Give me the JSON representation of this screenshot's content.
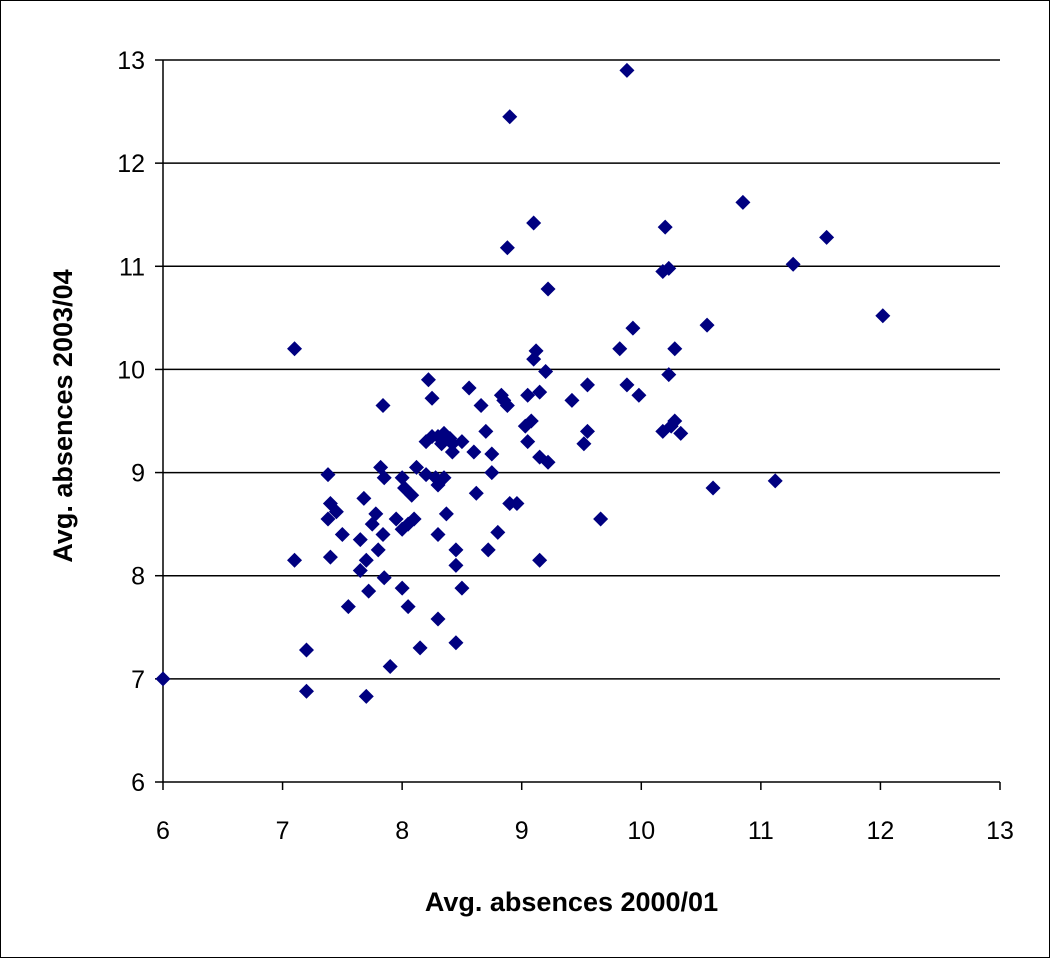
{
  "chart_data": {
    "type": "scatter",
    "title": "",
    "xlabel": "Avg. absences 2000/01",
    "ylabel": "Avg. absences 2003/04",
    "xlim": [
      6,
      13
    ],
    "ylim": [
      6,
      13
    ],
    "xticks": [
      "6",
      "7",
      "8",
      "9",
      "10",
      "11",
      "12",
      "13"
    ],
    "yticks": [
      "6",
      "7",
      "8",
      "9",
      "10",
      "11",
      "12",
      "13"
    ],
    "grid": "horizontal major gridlines",
    "legend": "none",
    "marker": "diamond",
    "marker_color": "#000080",
    "points": [
      [
        6.0,
        7.0
      ],
      [
        7.1,
        10.2
      ],
      [
        7.1,
        8.15
      ],
      [
        7.2,
        7.28
      ],
      [
        7.2,
        6.88
      ],
      [
        7.38,
        8.98
      ],
      [
        7.38,
        8.55
      ],
      [
        7.4,
        8.7
      ],
      [
        7.4,
        8.18
      ],
      [
        7.45,
        8.62
      ],
      [
        7.5,
        8.4
      ],
      [
        7.55,
        7.7
      ],
      [
        7.65,
        8.35
      ],
      [
        7.65,
        8.05
      ],
      [
        7.68,
        8.75
      ],
      [
        7.7,
        8.15
      ],
      [
        7.7,
        6.83
      ],
      [
        7.72,
        7.85
      ],
      [
        7.75,
        8.5
      ],
      [
        7.78,
        8.6
      ],
      [
        7.8,
        8.25
      ],
      [
        7.82,
        9.05
      ],
      [
        7.84,
        9.65
      ],
      [
        7.84,
        8.4
      ],
      [
        7.85,
        8.95
      ],
      [
        7.85,
        7.98
      ],
      [
        7.9,
        7.12
      ],
      [
        7.95,
        8.55
      ],
      [
        8.0,
        8.95
      ],
      [
        8.0,
        8.45
      ],
      [
        8.0,
        7.88
      ],
      [
        8.02,
        8.85
      ],
      [
        8.05,
        8.5
      ],
      [
        8.05,
        7.7
      ],
      [
        8.08,
        8.78
      ],
      [
        8.1,
        8.55
      ],
      [
        8.12,
        9.05
      ],
      [
        8.15,
        7.3
      ],
      [
        8.2,
        9.3
      ],
      [
        8.2,
        8.98
      ],
      [
        8.22,
        9.9
      ],
      [
        8.25,
        9.72
      ],
      [
        8.25,
        9.35
      ],
      [
        8.28,
        8.95
      ],
      [
        8.3,
        9.35
      ],
      [
        8.3,
        8.88
      ],
      [
        8.3,
        8.4
      ],
      [
        8.3,
        7.58
      ],
      [
        8.33,
        9.28
      ],
      [
        8.35,
        9.38
      ],
      [
        8.35,
        8.95
      ],
      [
        8.37,
        8.6
      ],
      [
        8.4,
        9.33
      ],
      [
        8.42,
        9.28
      ],
      [
        8.42,
        9.2
      ],
      [
        8.45,
        8.25
      ],
      [
        8.45,
        8.1
      ],
      [
        8.45,
        7.35
      ],
      [
        8.5,
        9.3
      ],
      [
        8.5,
        7.88
      ],
      [
        8.56,
        9.82
      ],
      [
        8.6,
        9.2
      ],
      [
        8.62,
        8.8
      ],
      [
        8.66,
        9.65
      ],
      [
        8.7,
        9.4
      ],
      [
        8.72,
        8.25
      ],
      [
        8.75,
        9.0
      ],
      [
        8.75,
        9.18
      ],
      [
        8.8,
        8.42
      ],
      [
        8.83,
        9.75
      ],
      [
        8.85,
        9.7
      ],
      [
        8.88,
        9.65
      ],
      [
        8.88,
        11.18
      ],
      [
        8.9,
        8.7
      ],
      [
        8.9,
        12.45
      ],
      [
        8.96,
        8.7
      ],
      [
        9.03,
        9.45
      ],
      [
        9.05,
        9.75
      ],
      [
        9.05,
        9.3
      ],
      [
        9.08,
        9.5
      ],
      [
        9.1,
        10.1
      ],
      [
        9.1,
        11.42
      ],
      [
        9.12,
        10.18
      ],
      [
        9.15,
        9.78
      ],
      [
        9.15,
        9.15
      ],
      [
        9.15,
        8.15
      ],
      [
        9.2,
        9.98
      ],
      [
        9.22,
        10.78
      ],
      [
        9.22,
        9.1
      ],
      [
        9.42,
        9.7
      ],
      [
        9.52,
        9.28
      ],
      [
        9.55,
        9.4
      ],
      [
        9.55,
        9.85
      ],
      [
        9.66,
        8.55
      ],
      [
        9.82,
        10.2
      ],
      [
        9.88,
        9.85
      ],
      [
        9.88,
        12.9
      ],
      [
        9.93,
        10.4
      ],
      [
        9.98,
        9.75
      ],
      [
        10.18,
        9.4
      ],
      [
        10.18,
        10.95
      ],
      [
        10.2,
        11.38
      ],
      [
        10.23,
        10.98
      ],
      [
        10.23,
        9.95
      ],
      [
        10.25,
        9.45
      ],
      [
        10.28,
        10.2
      ],
      [
        10.28,
        9.5
      ],
      [
        10.33,
        9.38
      ],
      [
        10.55,
        10.43
      ],
      [
        10.6,
        8.85
      ],
      [
        10.85,
        11.62
      ],
      [
        11.12,
        8.92
      ],
      [
        11.27,
        11.02
      ],
      [
        11.55,
        11.28
      ],
      [
        12.02,
        10.52
      ]
    ]
  }
}
